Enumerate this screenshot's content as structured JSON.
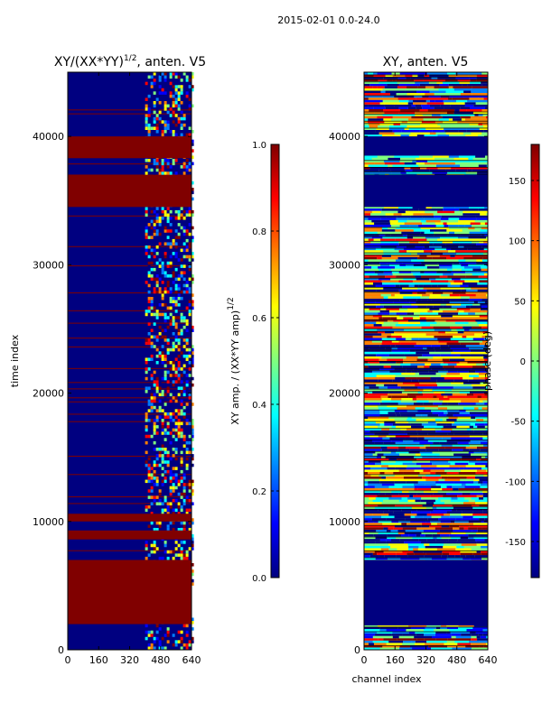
{
  "figure_title": "2015-02-01 0.0-24.0",
  "colors": {
    "dark_red": "#800000",
    "deep_blue": "#000080",
    "jet": [
      "#00007f",
      "#0000ff",
      "#007fff",
      "#00ffff",
      "#7fff7f",
      "#ffff00",
      "#ff7f00",
      "#ff0000",
      "#7f0000"
    ]
  },
  "chart_data": [
    {
      "type": "heatmap",
      "title_main": "XY/(XX*YY)",
      "title_sup": "1/2",
      "title_tail": ", anten. V5",
      "ylabel": "time index",
      "xlabel": "",
      "x_ticks": [
        "0",
        "160",
        "320",
        "480",
        "640"
      ],
      "y_ticks": [
        "0",
        "10000",
        "20000",
        "30000",
        "40000"
      ],
      "xlim": [
        0,
        640
      ],
      "ylim": [
        0,
        45000
      ],
      "colorbar": {
        "label_main": "XY amp. / (XX*YY amp)",
        "label_sup": "1/2",
        "range": [
          0.0,
          1.0
        ],
        "ticks": [
          "0.0",
          "0.2",
          "0.4",
          "0.6",
          "0.8",
          "1.0"
        ]
      },
      "solid_bands_time_index": [
        [
          2000,
          7000
        ],
        [
          8600,
          9300
        ],
        [
          10000,
          10600
        ],
        [
          34500,
          37000
        ],
        [
          38300,
          40000
        ]
      ],
      "active_channel_range": [
        400,
        640
      ]
    },
    {
      "type": "heatmap",
      "title": "XY, anten. V5",
      "xlabel": "channel index",
      "ylabel": "",
      "x_ticks": [
        "0",
        "160",
        "320",
        "480",
        "640"
      ],
      "y_ticks": [
        "0",
        "10000",
        "20000",
        "30000",
        "40000"
      ],
      "xlim": [
        0,
        640
      ],
      "ylim": [
        0,
        45000
      ],
      "colorbar": {
        "label": "phase (deg)",
        "range": [
          -180,
          180
        ],
        "ticks": [
          "-150",
          "-100",
          "-50",
          "0",
          "50",
          "100",
          "150"
        ]
      },
      "flagged_bands_time_index": [
        [
          1900,
          7000
        ],
        [
          34500,
          37000
        ],
        [
          38500,
          40000
        ]
      ]
    }
  ]
}
